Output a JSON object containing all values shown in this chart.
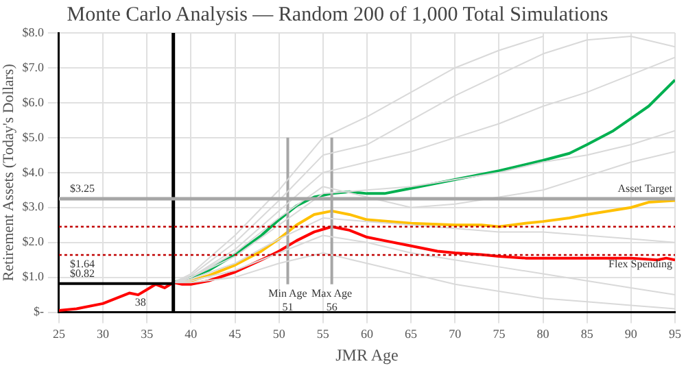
{
  "chart_data": {
    "type": "line",
    "title": "Monte Carlo Analysis — Random 200 of 1,000 Total Simulations",
    "xlabel": "JMR Age",
    "ylabel": "Retirement Assets (Today's Dollars)",
    "xlim": [
      25,
      95
    ],
    "xticks": [
      25,
      30,
      35,
      40,
      45,
      50,
      55,
      60,
      65,
      70,
      75,
      80,
      85,
      90,
      95
    ],
    "ylim": [
      0,
      8
    ],
    "yticks": [
      {
        "value": 0,
        "label": "$-"
      },
      {
        "value": 1,
        "label": "$1.0"
      },
      {
        "value": 2,
        "label": "$2.0"
      },
      {
        "value": 3,
        "label": "$3.0"
      },
      {
        "value": 4,
        "label": "$4.0"
      },
      {
        "value": 5,
        "label": "$5.0"
      },
      {
        "value": 6,
        "label": "$6.0"
      },
      {
        "value": 7,
        "label": "$7.0"
      },
      {
        "value": 8,
        "label": "$8.0"
      }
    ],
    "grid": true,
    "marker": "none",
    "line_style": "solid",
    "series": [
      {
        "color": "#d9d9d9",
        "x": [
          38,
          40,
          45,
          50,
          55,
          60,
          65,
          70,
          75,
          80
        ],
        "values": [
          0.85,
          1.1,
          2.2,
          3.5,
          5.0,
          5.6,
          6.3,
          7.0,
          7.5,
          7.9
        ]
      },
      {
        "color": "#d9d9d9",
        "x": [
          38,
          40,
          45,
          50,
          55,
          60,
          65,
          70,
          75,
          80,
          85,
          90,
          95
        ],
        "values": [
          0.85,
          1.0,
          1.8,
          2.9,
          4.0,
          4.3,
          4.6,
          5.0,
          5.4,
          5.9,
          6.3,
          6.8,
          7.3
        ]
      },
      {
        "color": "#d9d9d9",
        "x": [
          38,
          40,
          45,
          50,
          55,
          60,
          65,
          70,
          75,
          80,
          85,
          90,
          95
        ],
        "values": [
          0.85,
          1.0,
          1.6,
          2.5,
          3.4,
          3.5,
          3.6,
          3.8,
          4.0,
          4.3,
          4.5,
          4.8,
          5.2
        ]
      },
      {
        "color": "#d9d9d9",
        "x": [
          38,
          40,
          45,
          50,
          55,
          60,
          65,
          70,
          75,
          80,
          85,
          90,
          95
        ],
        "values": [
          0.85,
          0.95,
          1.4,
          2.1,
          2.7,
          2.6,
          2.5,
          2.4,
          2.3,
          2.3,
          2.2,
          2.1,
          2.0
        ]
      },
      {
        "color": "#d9d9d9",
        "x": [
          38,
          40,
          45,
          50,
          55,
          60,
          65,
          70,
          75,
          80,
          85,
          90,
          95
        ],
        "values": [
          0.85,
          0.9,
          1.2,
          1.7,
          2.2,
          2.0,
          1.7,
          1.5,
          1.3,
          1.1,
          0.9,
          0.7,
          0.5
        ]
      },
      {
        "color": "#d9d9d9",
        "x": [
          38,
          40,
          45,
          50,
          55,
          60,
          65,
          70,
          75,
          80,
          85,
          90,
          95
        ],
        "values": [
          0.85,
          0.85,
          1.0,
          1.4,
          1.7,
          1.4,
          1.1,
          0.8,
          0.6,
          0.4,
          0.3,
          0.2,
          0.1
        ]
      },
      {
        "color": "#d9d9d9",
        "x": [
          38,
          40,
          45,
          50,
          55,
          60,
          65,
          70,
          75,
          80,
          85,
          90,
          95
        ],
        "values": [
          0.85,
          1.05,
          2.0,
          3.2,
          4.5,
          4.8,
          5.5,
          6.2,
          6.8,
          7.4,
          7.8,
          7.9,
          7.6
        ]
      },
      {
        "color": "#d9d9d9",
        "x": [
          38,
          40,
          45,
          50,
          55,
          60,
          65,
          70,
          75,
          80,
          85,
          90,
          95
        ],
        "values": [
          0.85,
          1.0,
          1.7,
          2.7,
          3.6,
          3.3,
          3.0,
          3.1,
          3.3,
          3.5,
          3.9,
          4.3,
          4.6
        ]
      },
      {
        "color": "#a6a6a6",
        "x": [
          51,
          51
        ],
        "values": [
          0.8,
          5.0
        ]
      },
      {
        "color": "#a6a6a6",
        "x": [
          56,
          56
        ],
        "values": [
          0.8,
          5.0
        ]
      },
      {
        "color": "#000000",
        "x": [
          25,
          38
        ],
        "values": [
          0.82,
          0.82
        ]
      },
      {
        "color": "#ff0000",
        "x": [
          25,
          27,
          30,
          33,
          34,
          35,
          36,
          37,
          38,
          39,
          40,
          42,
          45,
          48,
          50,
          52,
          54,
          56,
          58,
          60,
          62,
          65,
          68,
          70,
          73,
          75,
          78,
          80,
          85,
          90,
          93,
          94,
          95
        ],
        "values": [
          0.05,
          0.1,
          0.25,
          0.55,
          0.5,
          0.65,
          0.8,
          0.7,
          0.85,
          0.8,
          0.8,
          0.9,
          1.15,
          1.5,
          1.75,
          2.05,
          2.3,
          2.45,
          2.35,
          2.15,
          2.05,
          1.9,
          1.75,
          1.7,
          1.65,
          1.6,
          1.55,
          1.55,
          1.55,
          1.55,
          1.5,
          1.55,
          1.5
        ]
      },
      {
        "color": "#ffc000",
        "x": [
          38,
          40,
          42,
          45,
          48,
          50,
          52,
          54,
          56,
          58,
          60,
          65,
          70,
          73,
          75,
          78,
          80,
          83,
          85,
          90,
          92,
          95
        ],
        "values": [
          0.85,
          0.9,
          1.05,
          1.35,
          1.75,
          2.1,
          2.5,
          2.8,
          2.9,
          2.8,
          2.65,
          2.55,
          2.5,
          2.5,
          2.45,
          2.55,
          2.6,
          2.7,
          2.8,
          3.0,
          3.15,
          3.2
        ]
      },
      {
        "color": "#00b050",
        "x": [
          38,
          40,
          42,
          45,
          48,
          50,
          52,
          54,
          56,
          58,
          60,
          62,
          65,
          70,
          75,
          80,
          83,
          85,
          88,
          90,
          92,
          95
        ],
        "values": [
          0.85,
          1.0,
          1.2,
          1.65,
          2.2,
          2.65,
          3.05,
          3.3,
          3.4,
          3.45,
          3.4,
          3.4,
          3.55,
          3.8,
          4.05,
          4.35,
          4.55,
          4.8,
          5.2,
          5.55,
          5.9,
          6.65
        ]
      }
    ],
    "ref_lines": [
      {
        "axis": "x",
        "value": 38,
        "color": "#000000",
        "line_style": "solid"
      },
      {
        "axis": "y",
        "value": 3.25,
        "color": "#a6a6a6",
        "line_style": "solid"
      },
      {
        "axis": "y",
        "value": 2.45,
        "color": "#c00000",
        "line_style": "dotted"
      },
      {
        "axis": "y",
        "value": 1.64,
        "color": "#c00000",
        "line_style": "dotted"
      }
    ],
    "annotations": [
      {
        "text": "$3.25",
        "x": 25,
        "y": 3.25
      },
      {
        "text": "Asset Target",
        "x": 95,
        "y": 3.25
      },
      {
        "text": "$1.64",
        "x": 25,
        "y": 1.64
      },
      {
        "text": "$0.82",
        "x": 25,
        "y": 0.82
      },
      {
        "text": "Flex Spending",
        "x": 95,
        "y": 1.64
      },
      {
        "text": "38",
        "x": 38,
        "y": 0
      },
      {
        "text": "Min Age\n51",
        "x": 51,
        "y": 0.8
      },
      {
        "text": "Max Age\n56",
        "x": 56,
        "y": 0.8
      }
    ]
  }
}
